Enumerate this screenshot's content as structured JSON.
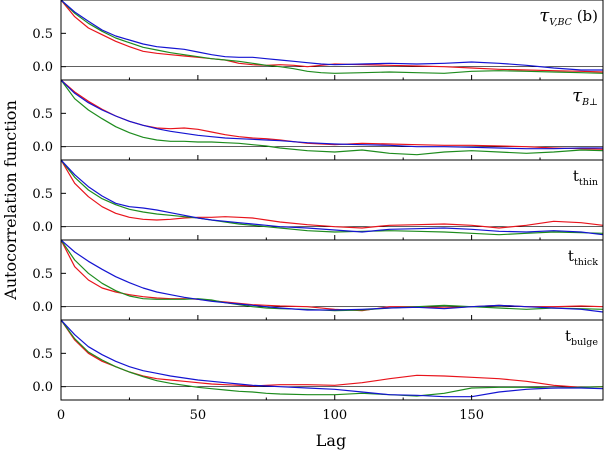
{
  "chart_data": {
    "type": "line",
    "xlabel": "Lag",
    "ylabel": "Autocorrelation function",
    "xlim": [
      0,
      198
    ],
    "ylim": [
      -0.2,
      1.0
    ],
    "x_ticks": [
      "0",
      "50",
      "100",
      "150"
    ],
    "y_ticks": [
      "0.5",
      "0.0"
    ],
    "colors": {
      "red": "#e8141c",
      "green": "#1e8c1e",
      "blue": "#1414d2"
    },
    "panels": [
      {
        "label_main": "τ",
        "label_sub": "V,BC",
        "label_suffix": " (b)",
        "series": [
          {
            "color": "red",
            "x": [
              0,
              5,
              10,
              15,
              20,
              25,
              30,
              35,
              40,
              45,
              50,
              55,
              60,
              65,
              70,
              75,
              80,
              85,
              90,
              95,
              100,
              110,
              120,
              130,
              140,
              150,
              160,
              170,
              180,
              190,
              198
            ],
            "y": [
              1.0,
              0.75,
              0.58,
              0.48,
              0.38,
              0.3,
              0.23,
              0.2,
              0.18,
              0.16,
              0.14,
              0.12,
              0.1,
              0.05,
              0.03,
              0.02,
              0.03,
              0.02,
              0.0,
              0.02,
              0.04,
              0.03,
              0.02,
              0.01,
              0.0,
              -0.02,
              -0.04,
              -0.05,
              -0.06,
              -0.07,
              -0.08
            ]
          },
          {
            "color": "green",
            "x": [
              0,
              5,
              10,
              15,
              20,
              25,
              30,
              35,
              40,
              45,
              50,
              55,
              60,
              65,
              70,
              75,
              80,
              85,
              90,
              95,
              100,
              110,
              120,
              130,
              140,
              150,
              160,
              170,
              180,
              190,
              198
            ],
            "y": [
              1.0,
              0.8,
              0.65,
              0.53,
              0.43,
              0.36,
              0.29,
              0.25,
              0.21,
              0.18,
              0.15,
              0.12,
              0.1,
              0.08,
              0.05,
              0.02,
              0.0,
              -0.03,
              -0.07,
              -0.09,
              -0.1,
              -0.09,
              -0.08,
              -0.09,
              -0.1,
              -0.07,
              -0.06,
              -0.07,
              -0.08,
              -0.09,
              -0.1
            ]
          },
          {
            "color": "blue",
            "x": [
              0,
              5,
              10,
              15,
              20,
              25,
              30,
              35,
              40,
              45,
              50,
              55,
              60,
              65,
              70,
              75,
              80,
              85,
              90,
              95,
              100,
              110,
              120,
              130,
              140,
              150,
              160,
              170,
              180,
              190,
              198
            ],
            "y": [
              1.0,
              0.82,
              0.68,
              0.55,
              0.46,
              0.4,
              0.34,
              0.3,
              0.28,
              0.26,
              0.22,
              0.18,
              0.15,
              0.14,
              0.14,
              0.12,
              0.1,
              0.08,
              0.06,
              0.04,
              0.03,
              0.04,
              0.05,
              0.04,
              0.05,
              0.07,
              0.05,
              0.02,
              -0.02,
              -0.05,
              -0.05
            ]
          }
        ]
      },
      {
        "label_main": "τ",
        "label_sub": "B⊥",
        "label_suffix": "",
        "series": [
          {
            "color": "red",
            "x": [
              0,
              5,
              10,
              15,
              20,
              25,
              30,
              35,
              40,
              45,
              50,
              55,
              60,
              65,
              70,
              75,
              80,
              90,
              100,
              110,
              120,
              130,
              140,
              150,
              160,
              170,
              180,
              190,
              198
            ],
            "y": [
              1.0,
              0.82,
              0.68,
              0.56,
              0.46,
              0.38,
              0.32,
              0.28,
              0.27,
              0.28,
              0.26,
              0.22,
              0.18,
              0.15,
              0.13,
              0.12,
              0.1,
              0.05,
              0.03,
              0.05,
              0.04,
              0.03,
              0.02,
              0.02,
              0.01,
              0.0,
              -0.02,
              -0.03,
              -0.04
            ]
          },
          {
            "color": "green",
            "x": [
              0,
              5,
              10,
              15,
              20,
              25,
              30,
              35,
              40,
              45,
              50,
              55,
              60,
              65,
              70,
              75,
              80,
              90,
              100,
              110,
              120,
              130,
              140,
              150,
              160,
              170,
              180,
              190,
              198
            ],
            "y": [
              1.0,
              0.72,
              0.55,
              0.42,
              0.3,
              0.21,
              0.14,
              0.1,
              0.08,
              0.08,
              0.07,
              0.07,
              0.06,
              0.05,
              0.03,
              0.01,
              -0.02,
              -0.06,
              -0.08,
              -0.05,
              -0.1,
              -0.12,
              -0.08,
              -0.06,
              -0.08,
              -0.1,
              -0.08,
              -0.05,
              -0.06
            ]
          },
          {
            "color": "blue",
            "x": [
              0,
              5,
              10,
              15,
              20,
              25,
              30,
              35,
              40,
              45,
              50,
              55,
              60,
              65,
              70,
              75,
              80,
              90,
              100,
              110,
              120,
              130,
              140,
              150,
              160,
              170,
              180,
              190,
              198
            ],
            "y": [
              1.0,
              0.8,
              0.66,
              0.55,
              0.46,
              0.38,
              0.32,
              0.27,
              0.23,
              0.2,
              0.17,
              0.15,
              0.13,
              0.12,
              0.11,
              0.1,
              0.09,
              0.06,
              0.04,
              0.03,
              0.02,
              0.0,
              0.0,
              -0.01,
              -0.02,
              -0.03,
              -0.03,
              -0.02,
              -0.02
            ]
          }
        ]
      },
      {
        "label_main": "t",
        "label_sub": "thin",
        "label_suffix": "",
        "series": [
          {
            "color": "red",
            "x": [
              0,
              5,
              10,
              15,
              20,
              25,
              30,
              35,
              40,
              45,
              50,
              55,
              60,
              65,
              70,
              75,
              80,
              90,
              100,
              110,
              120,
              130,
              140,
              150,
              160,
              170,
              180,
              190,
              198
            ],
            "y": [
              1.0,
              0.65,
              0.45,
              0.3,
              0.2,
              0.14,
              0.11,
              0.1,
              0.11,
              0.13,
              0.14,
              0.14,
              0.15,
              0.14,
              0.13,
              0.1,
              0.07,
              0.03,
              0.0,
              -0.02,
              0.02,
              0.03,
              0.04,
              0.02,
              -0.02,
              0.02,
              0.08,
              0.06,
              0.02
            ]
          },
          {
            "color": "green",
            "x": [
              0,
              5,
              10,
              15,
              20,
              25,
              30,
              35,
              40,
              45,
              50,
              55,
              60,
              65,
              70,
              75,
              80,
              90,
              100,
              110,
              120,
              130,
              140,
              150,
              160,
              170,
              180,
              190,
              198
            ],
            "y": [
              1.0,
              0.74,
              0.55,
              0.42,
              0.33,
              0.26,
              0.22,
              0.19,
              0.17,
              0.15,
              0.13,
              0.1,
              0.07,
              0.04,
              0.02,
              0.0,
              -0.02,
              -0.06,
              -0.08,
              -0.07,
              -0.06,
              -0.07,
              -0.08,
              -0.1,
              -0.12,
              -0.1,
              -0.08,
              -0.09,
              -0.1
            ]
          },
          {
            "color": "blue",
            "x": [
              0,
              5,
              10,
              15,
              20,
              25,
              30,
              35,
              40,
              45,
              50,
              55,
              60,
              65,
              70,
              75,
              80,
              90,
              100,
              110,
              120,
              130,
              140,
              150,
              160,
              170,
              180,
              190,
              198
            ],
            "y": [
              1.0,
              0.78,
              0.6,
              0.46,
              0.35,
              0.3,
              0.28,
              0.25,
              0.21,
              0.17,
              0.13,
              0.1,
              0.08,
              0.06,
              0.04,
              0.02,
              0.0,
              -0.02,
              -0.05,
              -0.08,
              -0.04,
              -0.03,
              -0.02,
              -0.04,
              -0.07,
              -0.08,
              -0.06,
              -0.08,
              -0.12
            ]
          }
        ]
      },
      {
        "label_main": "t",
        "label_sub": "thick",
        "label_suffix": "",
        "series": [
          {
            "color": "red",
            "x": [
              0,
              5,
              10,
              15,
              20,
              25,
              30,
              35,
              40,
              45,
              50,
              55,
              60,
              65,
              70,
              75,
              80,
              90,
              100,
              110,
              120,
              130,
              140,
              150,
              160,
              170,
              180,
              190,
              198
            ],
            "y": [
              1.0,
              0.6,
              0.4,
              0.28,
              0.22,
              0.18,
              0.15,
              0.13,
              0.12,
              0.12,
              0.11,
              0.09,
              0.07,
              0.05,
              0.03,
              0.02,
              0.01,
              0.0,
              -0.04,
              -0.06,
              0.0,
              0.0,
              -0.02,
              0.0,
              0.02,
              0.0,
              0.0,
              0.01,
              0.0
            ]
          },
          {
            "color": "green",
            "x": [
              0,
              5,
              10,
              15,
              20,
              25,
              30,
              35,
              40,
              45,
              50,
              55,
              60,
              65,
              70,
              75,
              80,
              90,
              100,
              110,
              120,
              130,
              140,
              150,
              160,
              170,
              180,
              190,
              198
            ],
            "y": [
              1.0,
              0.7,
              0.5,
              0.35,
              0.24,
              0.16,
              0.12,
              0.11,
              0.11,
              0.11,
              0.12,
              0.1,
              0.06,
              0.03,
              0.0,
              -0.02,
              -0.03,
              -0.04,
              -0.06,
              -0.05,
              -0.02,
              0.0,
              0.02,
              0.0,
              -0.02,
              -0.04,
              -0.02,
              -0.03,
              -0.04
            ]
          },
          {
            "color": "blue",
            "x": [
              0,
              5,
              10,
              15,
              20,
              25,
              30,
              35,
              40,
              45,
              50,
              55,
              60,
              65,
              70,
              75,
              80,
              90,
              100,
              110,
              120,
              130,
              140,
              150,
              160,
              170,
              180,
              190,
              198
            ],
            "y": [
              1.0,
              0.82,
              0.68,
              0.56,
              0.45,
              0.36,
              0.28,
              0.22,
              0.18,
              0.14,
              0.11,
              0.08,
              0.06,
              0.04,
              0.02,
              0.0,
              -0.02,
              -0.05,
              -0.05,
              -0.04,
              -0.02,
              -0.01,
              -0.03,
              0.0,
              0.02,
              0.0,
              -0.02,
              -0.04,
              -0.08
            ]
          }
        ]
      },
      {
        "label_main": "t",
        "label_sub": "bulge",
        "label_suffix": "",
        "series": [
          {
            "color": "red",
            "x": [
              0,
              5,
              10,
              15,
              20,
              25,
              30,
              35,
              40,
              45,
              50,
              55,
              60,
              65,
              70,
              75,
              80,
              90,
              100,
              110,
              120,
              130,
              140,
              150,
              160,
              170,
              180,
              190,
              198
            ],
            "y": [
              1.0,
              0.7,
              0.5,
              0.38,
              0.3,
              0.22,
              0.16,
              0.12,
              0.1,
              0.08,
              0.06,
              0.04,
              0.03,
              0.02,
              0.01,
              0.02,
              0.03,
              0.03,
              0.02,
              0.06,
              0.12,
              0.17,
              0.16,
              0.14,
              0.12,
              0.08,
              0.02,
              -0.01,
              0.0
            ]
          },
          {
            "color": "green",
            "x": [
              0,
              5,
              10,
              15,
              20,
              25,
              30,
              35,
              40,
              45,
              50,
              55,
              60,
              65,
              70,
              75,
              80,
              90,
              100,
              110,
              120,
              130,
              140,
              150,
              160,
              170,
              180,
              190,
              198
            ],
            "y": [
              1.0,
              0.72,
              0.52,
              0.4,
              0.3,
              0.22,
              0.15,
              0.09,
              0.05,
              0.02,
              -0.01,
              -0.03,
              -0.05,
              -0.07,
              -0.08,
              -0.1,
              -0.11,
              -0.12,
              -0.12,
              -0.1,
              -0.12,
              -0.14,
              -0.1,
              -0.02,
              -0.01,
              -0.01,
              -0.02,
              -0.01,
              0.0
            ]
          },
          {
            "color": "blue",
            "x": [
              0,
              5,
              10,
              15,
              20,
              25,
              30,
              35,
              40,
              45,
              50,
              55,
              60,
              65,
              70,
              75,
              80,
              90,
              100,
              110,
              120,
              130,
              140,
              150,
              160,
              170,
              180,
              190,
              198
            ],
            "y": [
              1.0,
              0.78,
              0.6,
              0.48,
              0.38,
              0.3,
              0.24,
              0.2,
              0.16,
              0.13,
              0.1,
              0.08,
              0.06,
              0.04,
              0.02,
              0.01,
              0.0,
              -0.02,
              -0.04,
              -0.08,
              -0.12,
              -0.13,
              -0.15,
              -0.15,
              -0.08,
              -0.04,
              -0.02,
              -0.02,
              -0.03
            ]
          }
        ]
      }
    ]
  }
}
